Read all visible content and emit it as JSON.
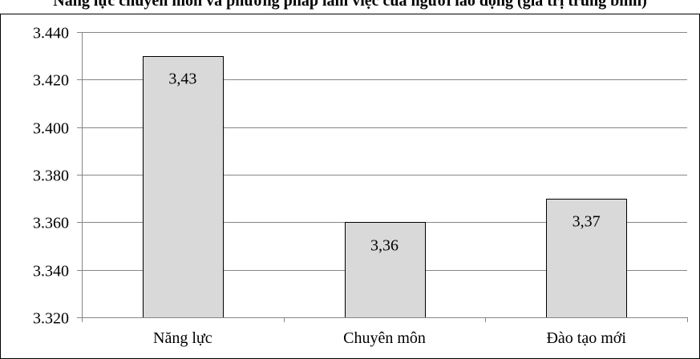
{
  "chart_data": {
    "type": "bar",
    "title": "Năng lực chuyên môn và phương pháp làm việc của người lao động (giá trị trung bình)",
    "categories": [
      "Năng lực",
      "Chuyên môn",
      "Đào tạo mới"
    ],
    "values": [
      3.43,
      3.36,
      3.37
    ],
    "data_labels": [
      "3,43",
      "3,36",
      "3,37"
    ],
    "yticks": [
      "3.320",
      "3.340",
      "3.360",
      "3.380",
      "3.400",
      "3.420",
      "3.440"
    ],
    "ylim": [
      3.32,
      3.44
    ],
    "grid": true,
    "legend": "none",
    "colors": {
      "bar_fill": "#d9d9d9",
      "bar_stroke": "#000000",
      "grid": "#868686",
      "axis": "#868686"
    }
  }
}
